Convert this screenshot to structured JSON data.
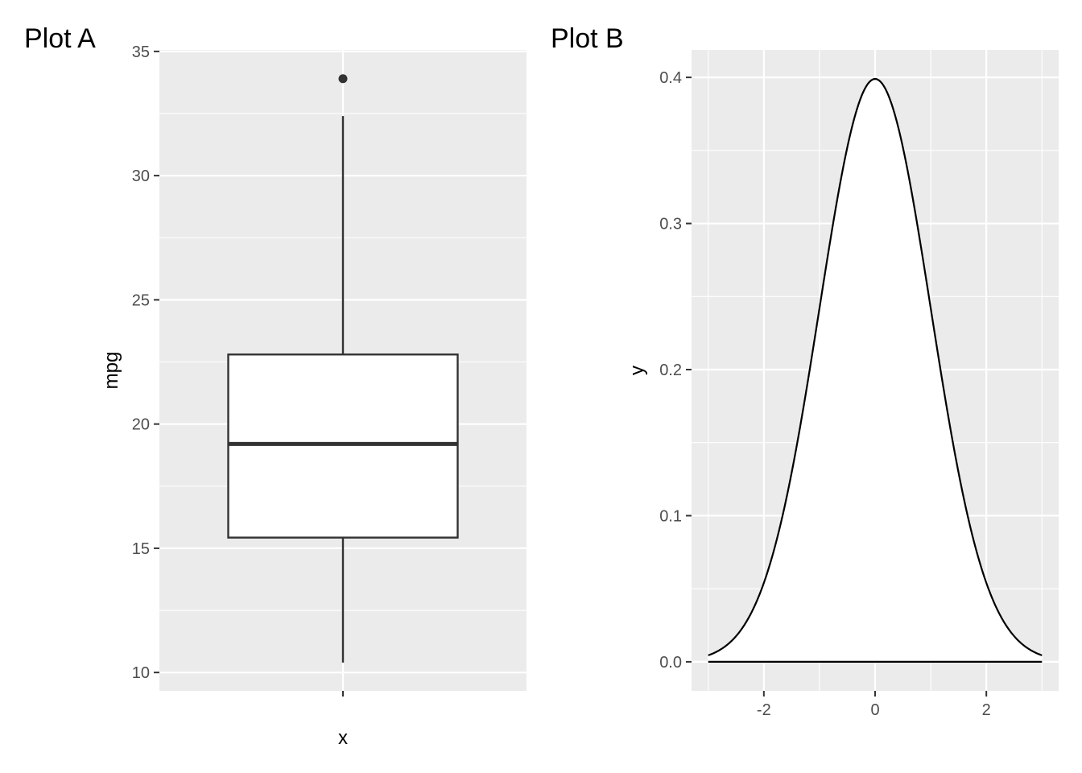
{
  "chart_data": [
    {
      "type": "box",
      "tag": "Plot A",
      "xlabel": "x",
      "ylabel": "mpg",
      "x_ticks": [
        ""
      ],
      "ylim": [
        9.26,
        35.06
      ],
      "y_ticks": [
        10,
        15,
        20,
        25,
        30,
        35
      ],
      "grid": true,
      "box": {
        "lower_whisker": 10.4,
        "q1": 15.43,
        "median": 19.2,
        "q3": 22.8,
        "upper_whisker": 32.4,
        "outliers": [
          33.9
        ]
      },
      "colors": {
        "panel": "#ebebeb",
        "grid": "#ffffff",
        "box_fill": "#ffffff",
        "box_line": "#333333"
      }
    },
    {
      "type": "area",
      "tag": "Plot B",
      "xlabel": "",
      "ylabel": "y",
      "function": "normal density, mean 0, sd 1",
      "xlim": [
        -3.3,
        3.3
      ],
      "ylim": [
        -0.0199,
        0.4188
      ],
      "x_ticks": [
        -2,
        0,
        2
      ],
      "y_ticks": [
        0.0,
        0.1,
        0.2,
        0.3,
        0.4
      ],
      "grid": true,
      "series": [
        {
          "x": [
            -3.0,
            -2.5,
            -2.0,
            -1.5,
            -1.0,
            -0.5,
            0.0,
            0.5,
            1.0,
            1.5,
            2.0,
            2.5,
            3.0
          ],
          "y": [
            0.0044,
            0.0175,
            0.054,
            0.1295,
            0.242,
            0.3521,
            0.3989,
            0.3521,
            0.242,
            0.1295,
            0.054,
            0.0175,
            0.0044
          ]
        }
      ],
      "colors": {
        "panel": "#ebebeb",
        "grid": "#ffffff",
        "fill": "#ffffff",
        "line": "#000000"
      }
    }
  ]
}
